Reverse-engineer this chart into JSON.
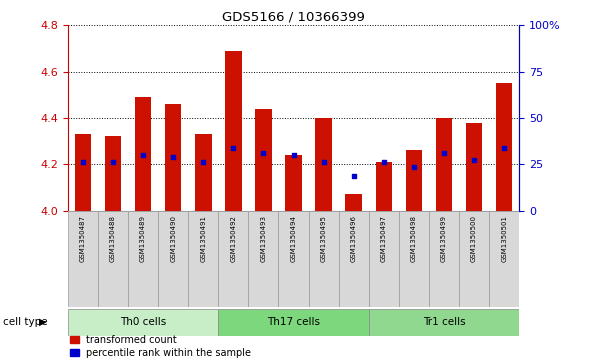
{
  "title": "GDS5166 / 10366399",
  "samples": [
    "GSM1350487",
    "GSM1350488",
    "GSM1350489",
    "GSM1350490",
    "GSM1350491",
    "GSM1350492",
    "GSM1350493",
    "GSM1350494",
    "GSM1350495",
    "GSM1350496",
    "GSM1350497",
    "GSM1350498",
    "GSM1350499",
    "GSM1350500",
    "GSM1350501"
  ],
  "bar_values": [
    4.33,
    4.32,
    4.49,
    4.46,
    4.33,
    4.69,
    4.44,
    4.24,
    4.4,
    4.07,
    4.21,
    4.26,
    4.4,
    4.38,
    4.55
  ],
  "percentile_values": [
    4.21,
    4.21,
    4.24,
    4.23,
    4.21,
    4.27,
    4.25,
    4.24,
    4.21,
    4.15,
    4.21,
    4.19,
    4.25,
    4.22,
    4.27
  ],
  "cell_groups": [
    {
      "name": "Th0 cells",
      "start": 0,
      "end": 5,
      "color": "#c8eec8"
    },
    {
      "name": "Th17 cells",
      "start": 5,
      "end": 10,
      "color": "#7dd87d"
    },
    {
      "name": "Tr1 cells",
      "start": 10,
      "end": 15,
      "color": "#90d890"
    }
  ],
  "ylim_left": [
    4.0,
    4.8
  ],
  "ylim_right": [
    0,
    100
  ],
  "bar_color": "#cc1100",
  "dot_color": "#0000cc",
  "left_tick_color": "#cc0000",
  "right_tick_color": "#0000cc",
  "legend_entries": [
    "transformed count",
    "percentile rank within the sample"
  ],
  "cell_type_label": "cell type"
}
